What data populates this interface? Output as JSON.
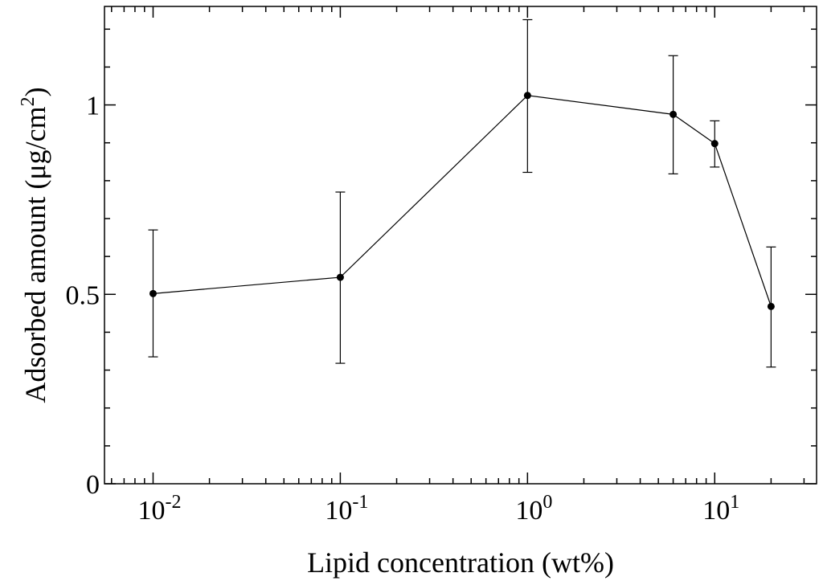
{
  "chart_data": {
    "type": "scatter",
    "xlabel": "Lipid concentration (wt%)",
    "ylabel_main": "Adsorbed amount (μg/cm",
    "ylabel_sup": "2",
    "ylabel_end": ")",
    "xscale": "log",
    "xlim": [
      0.0055,
      35
    ],
    "ylim": [
      0,
      1.26
    ],
    "x_ticks": [
      {
        "value": 0.01,
        "base": "10",
        "exp": "-2"
      },
      {
        "value": 0.1,
        "base": "10",
        "exp": "-1"
      },
      {
        "value": 1,
        "base": "10",
        "exp": "0"
      },
      {
        "value": 10,
        "base": "10",
        "exp": "1"
      }
    ],
    "y_ticks": [
      {
        "value": 0,
        "label": "0"
      },
      {
        "value": 0.5,
        "label": "0.5"
      },
      {
        "value": 1,
        "label": "1"
      }
    ],
    "grid": false,
    "series": [
      {
        "points": [
          {
            "x": 0.01,
            "y": 0.502,
            "err_low": 0.335,
            "err_high": 0.67
          },
          {
            "x": 0.1,
            "y": 0.545,
            "err_low": 0.318,
            "err_high": 0.77
          },
          {
            "x": 1,
            "y": 1.025,
            "err_low": 0.822,
            "err_high": 1.225
          },
          {
            "x": 6,
            "y": 0.975,
            "err_low": 0.818,
            "err_high": 1.13
          },
          {
            "x": 10,
            "y": 0.898,
            "err_low": 0.836,
            "err_high": 0.958
          },
          {
            "x": 20,
            "y": 0.468,
            "err_low": 0.308,
            "err_high": 0.625
          }
        ]
      }
    ]
  }
}
